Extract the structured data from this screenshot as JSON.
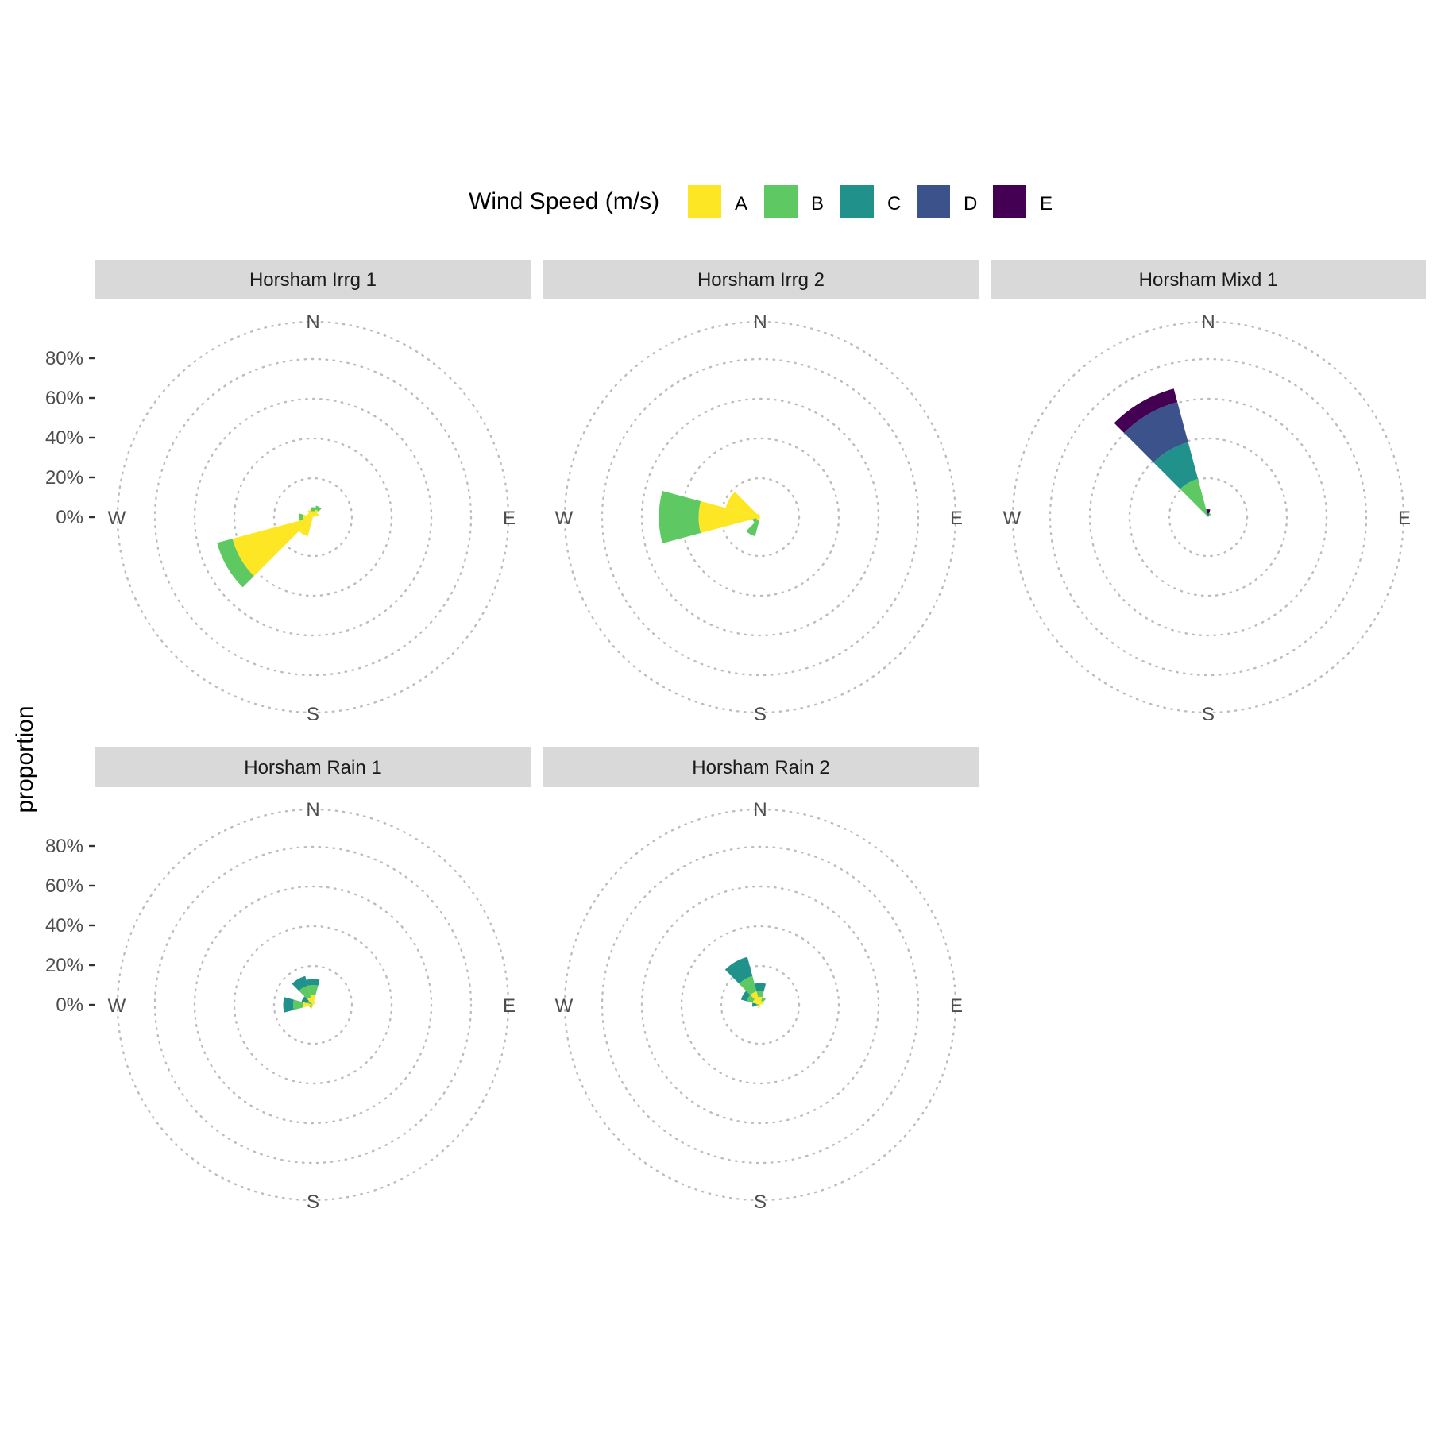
{
  "legend": {
    "title": "Wind Speed (m/s)",
    "position": "top",
    "items": [
      {
        "label": "A",
        "color": "#FDE725"
      },
      {
        "label": "B",
        "color": "#5EC962"
      },
      {
        "label": "C",
        "color": "#21918C"
      },
      {
        "label": "D",
        "color": "#3B528B"
      },
      {
        "label": "E",
        "color": "#440154"
      }
    ]
  },
  "y_axis_label": "proportion",
  "compass": {
    "north": "N",
    "east": "E",
    "south": "S",
    "west": "W"
  },
  "radial_ticks": [
    "0%",
    "20%",
    "40%",
    "60%",
    "80%"
  ],
  "chart_data": [
    {
      "type": "polar-stacked-bar",
      "title": "Horsham Irrg 1",
      "radial_range": [
        0,
        1
      ],
      "grid": true,
      "bars": [
        {
          "direction_deg": 240,
          "values": {
            "A": 0.42,
            "B": 0.08
          }
        },
        {
          "direction_deg": 210,
          "values": {
            "A": 0.1
          }
        },
        {
          "direction_deg": 270,
          "values": {
            "A": 0.05,
            "B": 0.02
          }
        },
        {
          "direction_deg": 0,
          "values": {
            "A": 0.03,
            "B": 0.02
          }
        },
        {
          "direction_deg": 30,
          "values": {
            "A": 0.04,
            "B": 0.02
          }
        },
        {
          "direction_deg": 60,
          "values": {
            "A": 0.03
          }
        },
        {
          "direction_deg": 300,
          "values": {
            "A": 0.03
          }
        },
        {
          "direction_deg": 330,
          "values": {
            "A": 0.04
          }
        }
      ]
    },
    {
      "type": "polar-stacked-bar",
      "title": "Horsham Irrg 2",
      "radial_range": [
        0,
        1
      ],
      "grid": true,
      "bars": [
        {
          "direction_deg": 270,
          "values": {
            "A": 0.31,
            "B": 0.2
          }
        },
        {
          "direction_deg": 300,
          "values": {
            "A": 0.18
          }
        },
        {
          "direction_deg": 210,
          "values": {
            "A": 0.02,
            "B": 0.08
          }
        },
        {
          "direction_deg": 240,
          "values": {
            "A": 0.02,
            "B": 0.02
          }
        },
        {
          "direction_deg": 330,
          "values": {
            "A": 0.02
          }
        }
      ]
    },
    {
      "type": "polar-stacked-bar",
      "title": "Horsham Mixd 1",
      "radial_range": [
        0,
        1
      ],
      "grid": true,
      "bars": [
        {
          "direction_deg": 330,
          "values": {
            "E": 0.07,
            "D": 0.21,
            "C": 0.19,
            "B": 0.2
          }
        },
        {
          "direction_deg": 0,
          "values": {
            "E": 0.02,
            "D": 0.02
          }
        },
        {
          "direction_deg": 30,
          "values": {
            "B": 0.02
          }
        }
      ]
    },
    {
      "type": "polar-stacked-bar",
      "title": "Horsham Rain 1",
      "radial_range": [
        0,
        1
      ],
      "grid": true,
      "bars": [
        {
          "direction_deg": 270,
          "values": {
            "C": 0.05,
            "B": 0.05,
            "A": 0.05
          }
        },
        {
          "direction_deg": 330,
          "values": {
            "C": 0.05,
            "B": 0.06,
            "A": 0.04
          }
        },
        {
          "direction_deg": 0,
          "values": {
            "C": 0.03,
            "B": 0.05,
            "A": 0.05
          }
        },
        {
          "direction_deg": 300,
          "values": {
            "C": 0.03,
            "B": 0.03
          }
        },
        {
          "direction_deg": 240,
          "values": {
            "B": 0.02
          }
        },
        {
          "direction_deg": 210,
          "values": {
            "A": 0.02
          }
        },
        {
          "direction_deg": 30,
          "values": {
            "A": 0.02
          }
        },
        {
          "direction_deg": 90,
          "values": {
            "A": 0.01
          }
        }
      ]
    },
    {
      "type": "polar-stacked-bar",
      "title": "Horsham Rain 2",
      "radial_range": [
        0,
        1
      ],
      "grid": true,
      "bars": [
        {
          "direction_deg": 330,
          "values": {
            "C": 0.1,
            "B": 0.08,
            "A": 0.07
          }
        },
        {
          "direction_deg": 0,
          "values": {
            "C": 0.04,
            "B": 0.03,
            "A": 0.04
          }
        },
        {
          "direction_deg": 300,
          "values": {
            "C": 0.03,
            "B": 0.03,
            "A": 0.04
          }
        },
        {
          "direction_deg": 270,
          "values": {
            "C": 0.02,
            "B": 0.02
          }
        },
        {
          "direction_deg": 30,
          "values": {
            "B": 0.02,
            "A": 0.02
          }
        },
        {
          "direction_deg": 60,
          "values": {
            "A": 0.02
          }
        },
        {
          "direction_deg": 180,
          "values": {
            "A": 0.01
          }
        },
        {
          "direction_deg": 210,
          "values": {
            "A": 0.02
          }
        }
      ]
    }
  ]
}
